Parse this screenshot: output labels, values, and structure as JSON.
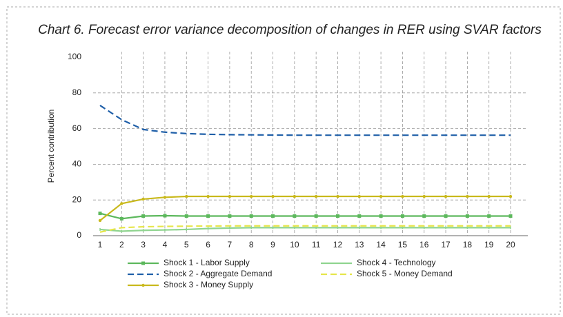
{
  "chart_data": {
    "type": "line",
    "title": "Chart 6. Forecast error variance decomposition of changes in RER using SVAR factors",
    "y_label": "Percent contribution",
    "x": [
      1,
      2,
      3,
      4,
      5,
      6,
      7,
      8,
      9,
      10,
      11,
      12,
      13,
      14,
      15,
      16,
      17,
      18,
      19,
      20
    ],
    "xlim": [
      1,
      20
    ],
    "xticks": [
      1,
      2,
      3,
      4,
      5,
      6,
      7,
      8,
      9,
      10,
      11,
      12,
      13,
      14,
      15,
      16,
      17,
      18,
      19,
      20
    ],
    "ylim": [
      0,
      100
    ],
    "yticks": [
      0,
      20,
      40,
      60,
      80,
      100
    ],
    "grid": true,
    "series": [
      {
        "name": "Shock 1 - Labor Supply",
        "color": "#5cb85c",
        "dash": "solid",
        "marker": "square",
        "values": [
          12.5,
          9.5,
          11,
          11.2,
          11,
          11,
          11,
          11,
          11,
          11,
          11,
          11,
          11,
          11,
          11,
          11,
          11,
          11,
          11,
          11
        ]
      },
      {
        "name": "Shock 2 - Aggregate Demand",
        "color": "#1f5fa8",
        "dash": "dashed",
        "marker": "none",
        "values": [
          73,
          65,
          59.5,
          58,
          57.2,
          56.8,
          56.6,
          56.5,
          56.4,
          56.3,
          56.3,
          56.3,
          56.3,
          56.3,
          56.3,
          56.3,
          56.3,
          56.3,
          56.3,
          56.3
        ]
      },
      {
        "name": "Shock 3 - Money Supply",
        "color": "#c9b91c",
        "dash": "solid",
        "marker": "circle",
        "values": [
          8.5,
          18,
          20.5,
          21.5,
          22,
          22,
          22,
          22,
          22,
          22,
          22,
          22,
          22,
          22,
          22,
          22,
          22,
          22,
          22,
          22
        ]
      },
      {
        "name": "Shock 4 - Technology",
        "color": "#8fd48f",
        "dash": "solid",
        "marker": "tick",
        "values": [
          3.5,
          2.5,
          3,
          3.2,
          3.5,
          4,
          4.3,
          4.5,
          4.5,
          4.5,
          4.5,
          4.5,
          4.5,
          4.5,
          4.5,
          4.5,
          4.5,
          4.5,
          4.5,
          4.5
        ]
      },
      {
        "name": "Shock 5 - Money Demand",
        "color": "#e6e64a",
        "dash": "dashed",
        "marker": "none",
        "values": [
          2,
          4.5,
          5,
          5.2,
          5.3,
          5.4,
          5.5,
          5.5,
          5.5,
          5.5,
          5.5,
          5.5,
          5.5,
          5.5,
          5.5,
          5.5,
          5.5,
          5.5,
          5.5,
          5.5
        ]
      }
    ]
  }
}
